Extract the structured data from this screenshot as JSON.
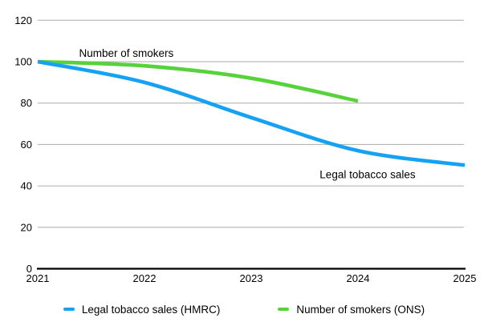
{
  "chart_data": {
    "type": "line",
    "x": [
      2021,
      2022,
      2023,
      2024,
      2025
    ],
    "x_tick_labels": [
      "2021",
      "2022",
      "2023",
      "2024",
      "2025"
    ],
    "series": [
      {
        "name": "Legal tobacco sales (HMRC)",
        "color": "#16A1F3",
        "values": [
          100,
          90,
          73,
          57,
          50
        ]
      },
      {
        "name": "Number of smokers (ONS)",
        "color": "#58D23B",
        "values": [
          100,
          98,
          92,
          81,
          null
        ]
      }
    ],
    "annotations": [
      {
        "text": "Number of smokers",
        "year": 2021.83,
        "value": 104
      },
      {
        "text": "Legal tobacco sales",
        "year": 2024.09,
        "value": 45.5
      }
    ],
    "title": "",
    "xlabel": "",
    "ylabel": "",
    "ylim": [
      0,
      120
    ],
    "yticks": [
      0,
      20,
      40,
      60,
      80,
      100,
      120
    ],
    "grid": true,
    "legend_position": "bottom",
    "colors": {
      "gridline": "#ABABAB",
      "axis_line": "#000000",
      "tick_label": "#000000",
      "annotation_text": "#000000",
      "background": "#FFFFFF"
    }
  }
}
